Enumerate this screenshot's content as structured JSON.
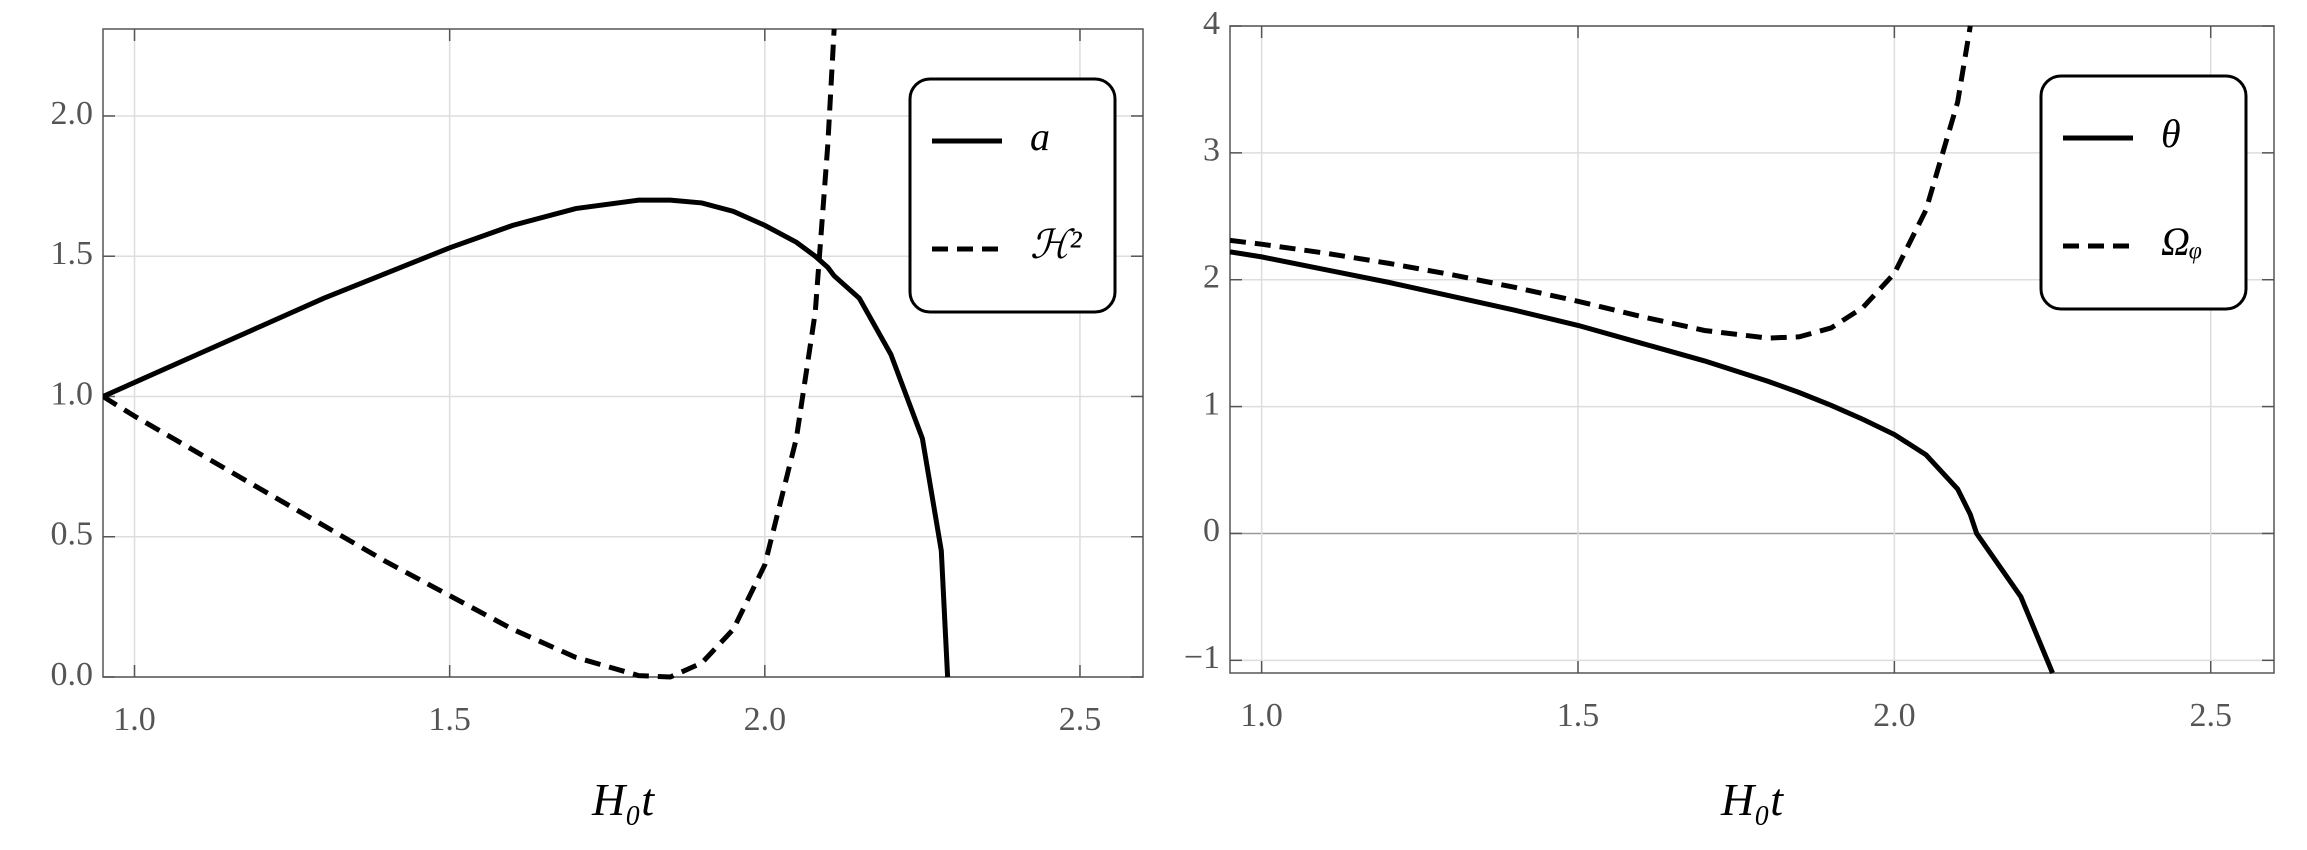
{
  "chart_data": [
    {
      "type": "line",
      "xlabel": "H₀t",
      "x": [
        0.95,
        1.0,
        1.1,
        1.2,
        1.3,
        1.4,
        1.5,
        1.6,
        1.7,
        1.8,
        1.85,
        1.9,
        1.95,
        2.0,
        2.05,
        2.08,
        2.1,
        2.11,
        2.15,
        2.2,
        2.25,
        2.28,
        2.29
      ],
      "series": [
        {
          "name": "a",
          "color": "#000000",
          "dash": false,
          "values": [
            1.0,
            1.05,
            1.15,
            1.25,
            1.35,
            1.44,
            1.53,
            1.61,
            1.67,
            1.7,
            1.7,
            1.69,
            1.66,
            1.61,
            1.55,
            1.5,
            1.46,
            1.43,
            1.35,
            1.15,
            0.85,
            0.45,
            0.0
          ]
        },
        {
          "name": "ℋ²",
          "color": "#000000",
          "dash": true,
          "values": [
            1.0,
            0.93,
            0.8,
            0.67,
            0.54,
            0.41,
            0.29,
            0.17,
            0.07,
            0.005,
            0.0,
            0.05,
            0.17,
            0.4,
            0.85,
            1.3,
            1.9,
            2.31,
            null,
            null,
            null,
            null,
            null
          ]
        }
      ],
      "xlim": [
        0.95,
        2.6
      ],
      "xticks": [
        {
          "value": 1.0,
          "label": "1.0"
        },
        1.5,
        {
          "value": 2.0,
          "label": "2.0"
        },
        2.5
      ],
      "ylim": [
        0,
        2.31
      ],
      "yticks": [
        {
          "value": 0,
          "label": "0.0"
        },
        0.5,
        {
          "value": 1,
          "label": "1.0"
        },
        1.5,
        {
          "value": 2,
          "label": "2.0"
        }
      ],
      "grid": true,
      "legend": "upper right"
    },
    {
      "type": "line",
      "xlabel": "H₀t",
      "x": [
        0.95,
        1.0,
        1.1,
        1.2,
        1.3,
        1.4,
        1.5,
        1.6,
        1.7,
        1.8,
        1.85,
        1.9,
        1.95,
        2.0,
        2.05,
        2.1,
        2.12,
        2.13,
        2.2,
        2.25
      ],
      "series": [
        {
          "name": "θ",
          "color": "#000000",
          "dash": false,
          "values": [
            2.22,
            2.18,
            2.08,
            1.98,
            1.87,
            1.76,
            1.64,
            1.5,
            1.36,
            1.2,
            1.11,
            1.01,
            0.9,
            0.78,
            0.62,
            0.35,
            0.15,
            0.0,
            -0.5,
            -1.1
          ]
        },
        {
          "name": "Ωᵩ",
          "color": "#000000",
          "dash": true,
          "values": [
            2.31,
            2.28,
            2.21,
            2.13,
            2.04,
            1.94,
            1.83,
            1.71,
            1.6,
            1.54,
            1.55,
            1.62,
            1.78,
            2.05,
            2.55,
            3.4,
            4.0,
            null,
            null,
            null
          ]
        }
      ],
      "xlim": [
        0.95,
        2.6
      ],
      "xticks": [
        {
          "value": 1.0,
          "label": "1.0"
        },
        1.5,
        {
          "value": 2.0,
          "label": "2.0"
        },
        2.5
      ],
      "ylim": [
        -1.1,
        4.0
      ],
      "yticks": [
        {
          "value": -1,
          "label": "−1"
        },
        0,
        1,
        2,
        3,
        4
      ],
      "grid": true,
      "legend": "upper right"
    }
  ]
}
